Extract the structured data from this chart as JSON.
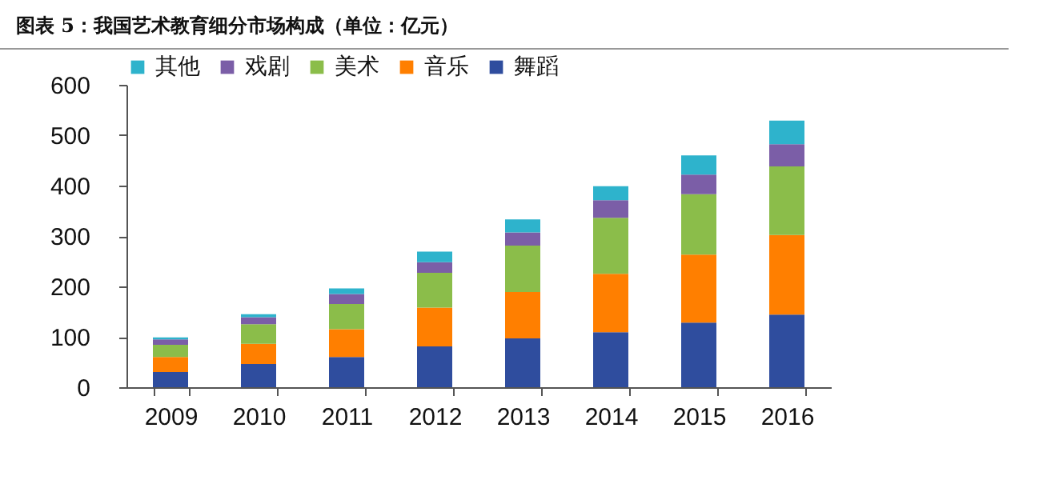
{
  "chart_data": {
    "type": "bar",
    "title": "图表 5：我国艺术教育细分市场构成（单位：亿元）",
    "stacked": true,
    "legend": "top",
    "categories": [
      "2009",
      "2010",
      "2011",
      "2012",
      "2013",
      "2014",
      "2015",
      "2016"
    ],
    "series": [
      {
        "name": "舞蹈",
        "color": "#2f4d9e",
        "values": [
          30,
          46,
          60,
          81,
          97,
          109,
          128,
          144
        ]
      },
      {
        "name": "音乐",
        "color": "#ff7f00",
        "values": [
          30,
          40,
          55,
          77,
          92,
          116,
          135,
          158
        ]
      },
      {
        "name": "美术",
        "color": "#8bbd4a",
        "values": [
          24,
          39,
          50,
          69,
          92,
          111,
          120,
          136
        ]
      },
      {
        "name": "戏剧",
        "color": "#7b5ea7",
        "values": [
          11,
          14,
          20,
          21,
          26,
          35,
          39,
          44
        ]
      },
      {
        "name": "其他",
        "color": "#2eb3cc",
        "values": [
          4,
          6,
          11,
          21,
          26,
          28,
          38,
          47
        ]
      }
    ],
    "ylim": [
      0,
      600
    ],
    "yticks": [
      0,
      100,
      200,
      300,
      400,
      500,
      600
    ],
    "grid": false
  }
}
